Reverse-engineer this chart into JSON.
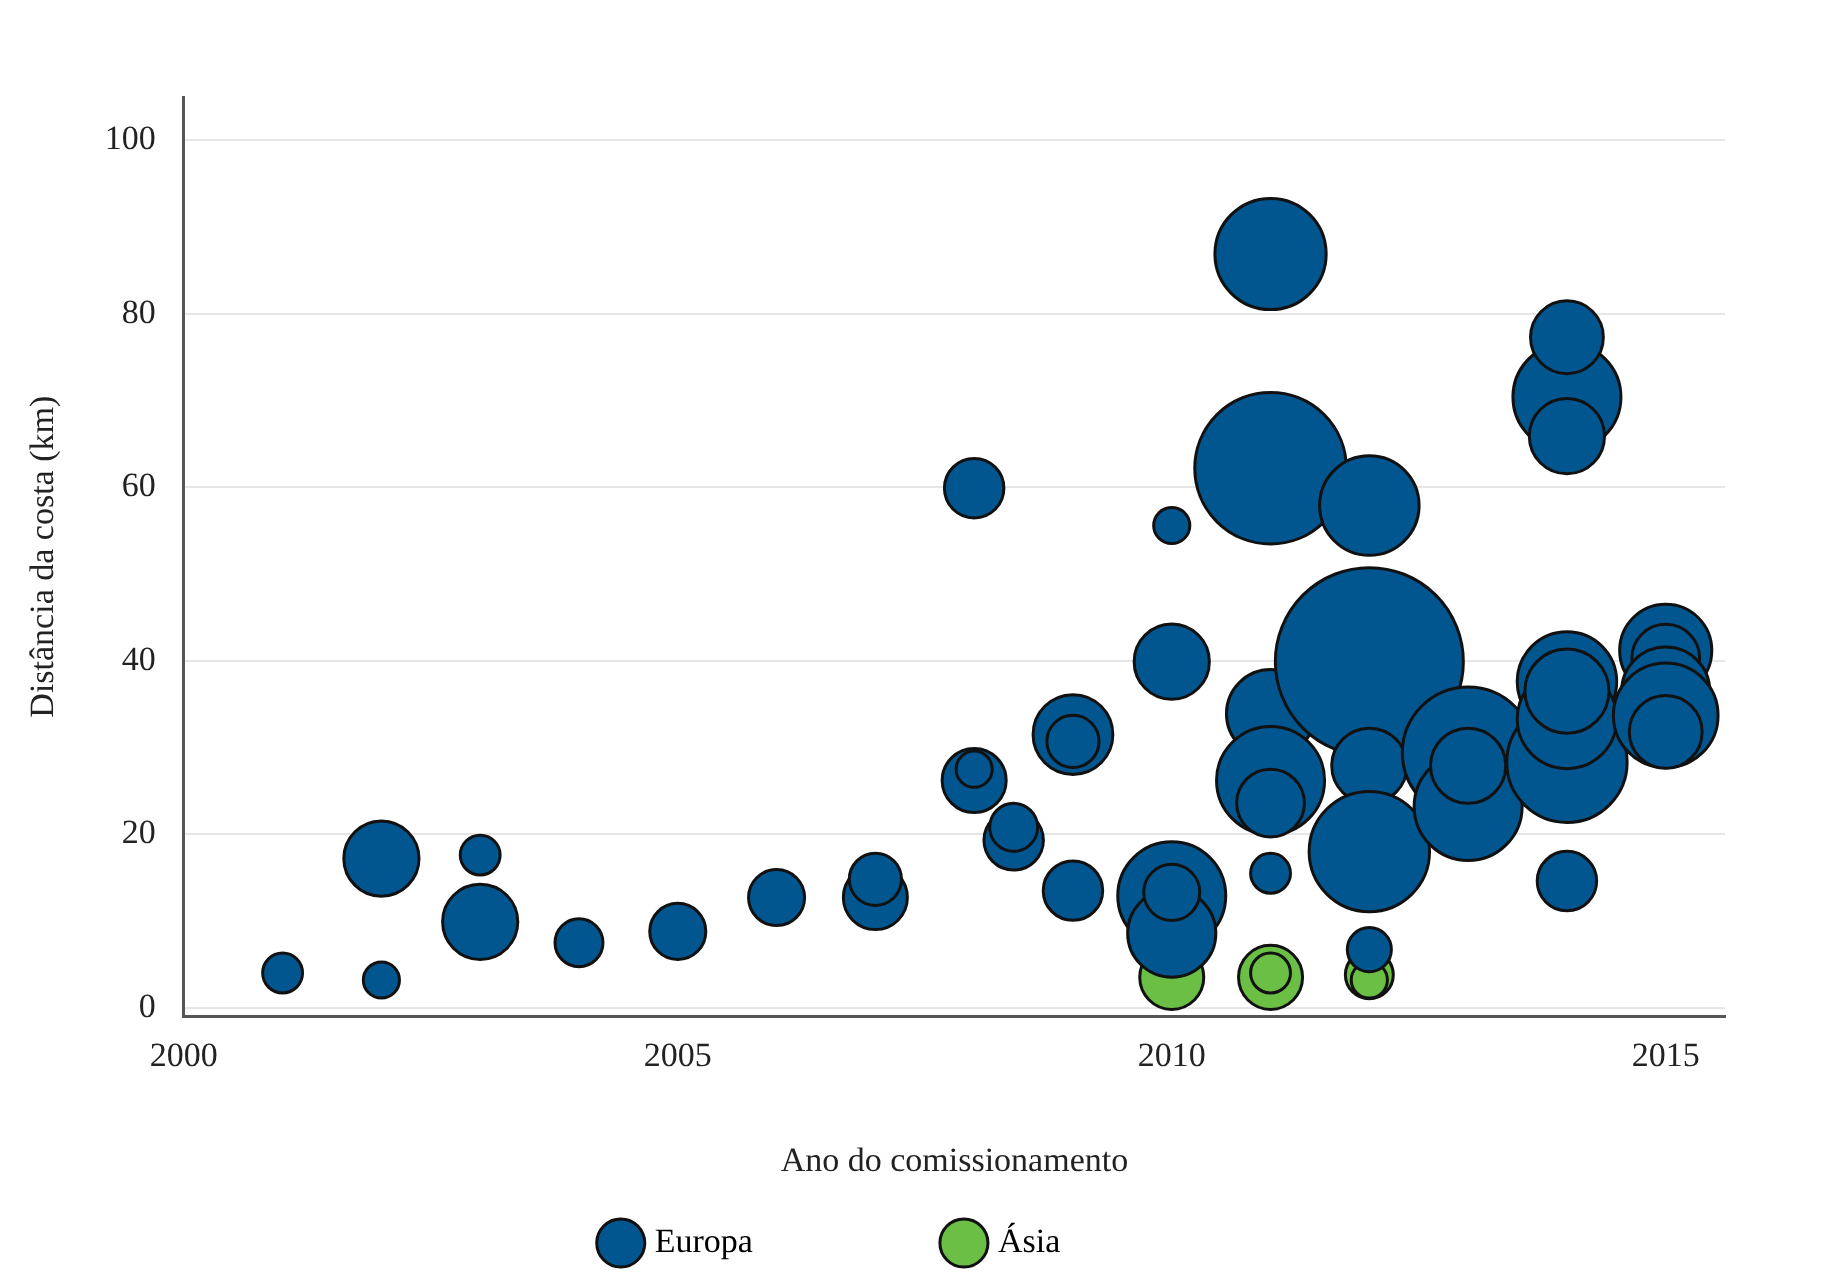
{
  "chart_data": {
    "type": "bubble",
    "xlabel": "Ano do comissionamento",
    "ylabel": "Distância da costa (km)",
    "xlim": [
      2000,
      2015.6
    ],
    "xticks": [
      2000,
      2005,
      2010,
      2015
    ],
    "ylim": [
      -1,
      105
    ],
    "yticks": [
      0,
      20,
      40,
      60,
      80,
      100
    ],
    "grid": "y",
    "legend": "bottom",
    "series": [
      {
        "name": "Europa",
        "color": "#02568f",
        "x": [
          2001,
          2002,
          2002,
          2003,
          2003,
          2004,
          2005,
          2006,
          2007,
          2007,
          2008,
          2008,
          2008,
          2009,
          2009,
          2008.4,
          2008.4,
          2009,
          2010,
          2010,
          2010,
          2010,
          2010,
          2011,
          2011,
          2011,
          2011,
          2011,
          2011,
          2012,
          2012,
          2012,
          2012,
          2012,
          2013,
          2013,
          2013,
          2014,
          2014,
          2014,
          2014,
          2014,
          2014,
          2014,
          2014,
          2015,
          2015,
          2015,
          2015,
          2015
        ],
        "values": [
          4,
          17.2,
          3.2,
          17.6,
          9.9,
          7.5,
          8.8,
          12.7,
          12.7,
          14.8,
          59.9,
          26.2,
          27.5,
          31.5,
          30.7,
          19.3,
          20.8,
          13.5,
          55.6,
          39.9,
          12.9,
          8.6,
          13.3,
          86.9,
          62.2,
          33.9,
          26.2,
          23.6,
          15.5,
          57.9,
          39.9,
          27.9,
          18,
          6.7,
          29.4,
          23.2,
          27.9,
          70.4,
          77.3,
          65.9,
          28.3,
          37.6,
          33.3,
          36.5,
          14.6,
          41.2,
          40.3,
          36.5,
          33.7,
          31.8
        ],
        "sizes": [
          0.045,
          0.16,
          0.037,
          0.045,
          0.16,
          0.065,
          0.089,
          0.089,
          0.116,
          0.077,
          0.1,
          0.116,
          0.037,
          0.18,
          0.077,
          0.1,
          0.065,
          0.1,
          0.037,
          0.16,
          0.33,
          0.22,
          0.089,
          0.35,
          0.65,
          0.22,
          0.33,
          0.13,
          0.045,
          0.28,
          1,
          0.16,
          0.41,
          0.055,
          0.49,
          0.33,
          0.16,
          0.33,
          0.15,
          0.16,
          0.41,
          0.28,
          0.28,
          0.2,
          0.1,
          0.24,
          0.13,
          0.22,
          0.31,
          0.15
        ]
      },
      {
        "name": "Ásia",
        "color": "#6cbf45",
        "x": [
          2010,
          2011,
          2011,
          2012,
          2012
        ],
        "values": [
          3.5,
          3.5,
          4,
          3.8,
          3.2
        ],
        "sizes": [
          0.116,
          0.116,
          0.045,
          0.065,
          0.037
        ]
      }
    ]
  }
}
